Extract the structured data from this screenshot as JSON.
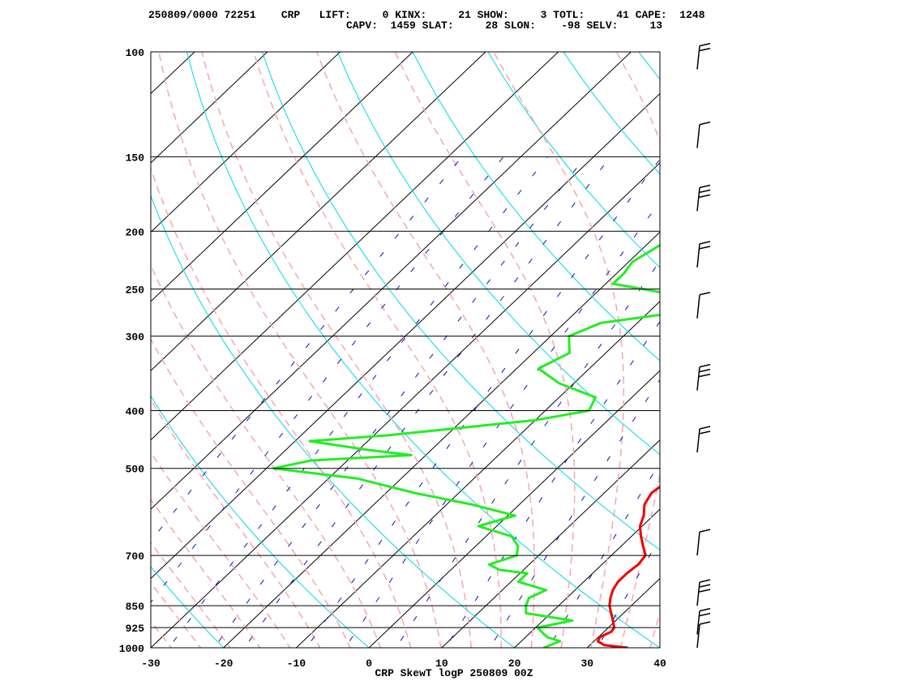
{
  "header": {
    "line1": "250809/0000 72251    CRP   LIFT:     0 KINX:     21 SHOW:     3 TOTL:     41 CAPE:  1248",
    "line2": "CAPV:  1459 SLAT:     28 SLON:    -98 SELV:     13"
  },
  "footer": "CRP SkewT logP 250809 00Z",
  "chart_data": {
    "type": "line",
    "title": "CRP SkewT logP 250809 00Z",
    "xlabel": "",
    "ylabel": "",
    "x_ticks": [
      "-30",
      "-20",
      "-10",
      "0",
      "10",
      "20",
      "30",
      "40"
    ],
    "y_ticks": [
      "100",
      "150",
      "200",
      "250",
      "300",
      "400",
      "500",
      "700",
      "850",
      "925",
      "1000"
    ],
    "xlim": [
      -30,
      40
    ],
    "ylim_hpa": [
      1000,
      100
    ],
    "log_pressure_axis": true,
    "skewed_temperature_axis": true,
    "station": "CRP",
    "station_id": "72251",
    "indices": {
      "LIFT": 0,
      "KINX": 21,
      "SHOW": 3,
      "TOTL": 41,
      "CAPE": 1248,
      "CAPV": 1459,
      "SLAT": 28,
      "SLON": -98,
      "SELV": 13
    },
    "colors": {
      "temperature": "#ee0000",
      "dewpoint": "#22ee22",
      "isotherms": "#000000",
      "dry_adiabats": "#00d8e8",
      "moist_adiabats": "#f4a6b4",
      "mixing_ratio": "#1010aa",
      "isobars": "#000000"
    },
    "series": [
      {
        "name": "Temperature",
        "p": [
          1000,
          990,
          975,
          960,
          940,
          925,
          900,
          875,
          850,
          825,
          800,
          775,
          750,
          725,
          700,
          675,
          650,
          625,
          600,
          575,
          550,
          525,
          515,
          500,
          480,
          460,
          440,
          420,
          400,
          380,
          360,
          340,
          320,
          300,
          285,
          270,
          255,
          245,
          230,
          215,
          200,
          185,
          170,
          155,
          140,
          130,
          120,
          115,
          105,
          100
        ],
        "t": [
          35.6,
          32.0,
          30.5,
          30.2,
          31.0,
          30.8,
          29.6,
          28.3,
          27.0,
          26.0,
          25.2,
          24.7,
          24.7,
          25.0,
          24.7,
          23.0,
          21.3,
          19.7,
          18.7,
          17.2,
          16.5,
          17.0,
          18.0,
          17.6,
          16.4,
          15.4,
          14.0,
          12.2,
          10.3,
          8.3,
          6.8,
          5.5,
          4.3,
          2.7,
          1.0,
          -0.6,
          -2.0,
          -3.5,
          -5.0,
          -6.3,
          -7.8,
          -9.0,
          -10.5,
          -12.0,
          -13.5,
          -14.2,
          -14.0,
          -16.0,
          -17.0,
          -16.5
        ]
      },
      {
        "name": "Dewpoint",
        "p": [
          1000,
          975,
          960,
          940,
          925,
          900,
          875,
          850,
          825,
          800,
          775,
          750,
          740,
          725,
          700,
          675,
          650,
          625,
          600,
          575,
          550,
          520,
          500,
          485,
          475,
          465,
          450,
          440,
          430,
          415,
          400,
          380,
          360,
          340,
          320,
          300,
          285,
          270,
          255,
          245,
          235,
          225,
          210,
          200,
          185,
          170,
          155,
          140,
          130,
          120,
          110,
          100
        ],
        "t": [
          24.0,
          25.3,
          23.0,
          21.4,
          20.3,
          24.0,
          16.6,
          15.5,
          14.8,
          16.0,
          11.0,
          11.0,
          6.7,
          4.5,
          7.0,
          5.8,
          3.5,
          -2.5,
          1.0,
          -6.5,
          -16.0,
          -26.0,
          -39.0,
          -35.0,
          -22.0,
          -29.0,
          -38.0,
          -28.0,
          -21.0,
          -10.0,
          -4.0,
          -5.0,
          -12.0,
          -17.0,
          -15.0,
          -17.5,
          -15.0,
          -3.0,
          -9.5,
          -19.0,
          -19.0,
          -19.5,
          -18.0,
          -16.0,
          -20.0,
          -23.0,
          -25.0,
          -27.0,
          -30.0,
          -32.0,
          -30.0,
          -32.0
        ]
      }
    ],
    "wind_barbs": [
      {
        "p": 1000,
        "label": "1000 hPa"
      },
      {
        "p": 950,
        "label": "950 hPa"
      },
      {
        "p": 850,
        "label": "850 hPa"
      },
      {
        "p": 700,
        "label": "700 hPa"
      },
      {
        "p": 470,
        "label": "470 hPa"
      },
      {
        "p": 370,
        "label": "370 hPa"
      },
      {
        "p": 280,
        "label": "280 hPa"
      },
      {
        "p": 230,
        "label": "230 hPa"
      },
      {
        "p": 185,
        "label": "185 hPa"
      },
      {
        "p": 145,
        "label": "145 hPa"
      },
      {
        "p": 107,
        "label": "107 hPa"
      }
    ]
  }
}
